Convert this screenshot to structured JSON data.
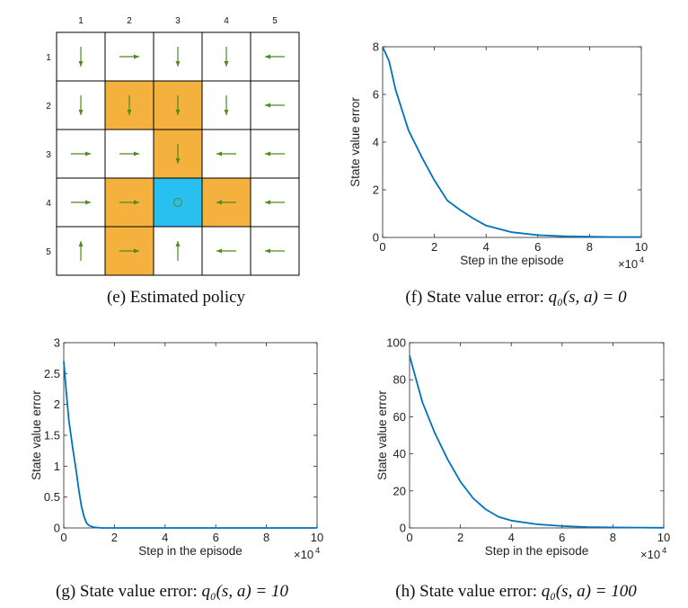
{
  "colors": {
    "line": "#0072BD",
    "forbidden": "#F5B13D",
    "target": "#29BFEF",
    "arrow": "#4E8A1E",
    "grid": "#000000"
  },
  "chart_data": [
    {
      "type": "table",
      "panel": "e",
      "caption": "(e) Estimated policy",
      "col_labels": [
        "1",
        "2",
        "3",
        "4",
        "5"
      ],
      "row_labels": [
        "1",
        "2",
        "3",
        "4",
        "5"
      ],
      "cell_types": [
        [
          "normal",
          "normal",
          "normal",
          "normal",
          "normal"
        ],
        [
          "normal",
          "forbidden",
          "forbidden",
          "normal",
          "normal"
        ],
        [
          "normal",
          "normal",
          "forbidden",
          "normal",
          "normal"
        ],
        [
          "normal",
          "forbidden",
          "target",
          "forbidden",
          "normal"
        ],
        [
          "normal",
          "forbidden",
          "normal",
          "normal",
          "normal"
        ]
      ],
      "policy": [
        [
          "down",
          "right",
          "down",
          "down",
          "left"
        ],
        [
          "down",
          "down",
          "down",
          "down",
          "left"
        ],
        [
          "right",
          "right",
          "down",
          "left",
          "left"
        ],
        [
          "right",
          "right",
          "stay",
          "left",
          "left"
        ],
        [
          "up",
          "right",
          "up",
          "left",
          "left"
        ]
      ]
    },
    {
      "type": "line",
      "panel": "f",
      "caption_text": "(f) State value error: ",
      "caption_math": "q₀(s, a) = 0",
      "xlabel": "Step in the episode",
      "ylabel": "State value error",
      "x_multiplier": "×10",
      "x_exponent": "4",
      "xlim": [
        0,
        10
      ],
      "ylim": [
        0,
        8
      ],
      "xticks": [
        0,
        2,
        4,
        6,
        8,
        10
      ],
      "yticks": [
        0,
        2,
        4,
        6,
        8
      ],
      "series": [
        {
          "x": [
            0,
            0.25,
            0.5,
            1.0,
            1.5,
            2.0,
            2.5,
            3.0,
            3.5,
            4.0,
            5.0,
            6.0,
            7.0,
            8.0,
            9.0,
            10.0
          ],
          "values": [
            8.0,
            7.4,
            6.2,
            4.5,
            3.4,
            2.4,
            1.55,
            1.15,
            0.8,
            0.5,
            0.22,
            0.1,
            0.05,
            0.03,
            0.02,
            0.02
          ]
        }
      ]
    },
    {
      "type": "line",
      "panel": "g",
      "caption_text": "(g) State value error: ",
      "caption_math": "q₀(s, a) = 10",
      "xlabel": "Step in the episode",
      "ylabel": "State value error",
      "x_multiplier": "×10",
      "x_exponent": "4",
      "xlim": [
        0,
        10
      ],
      "ylim": [
        0,
        3
      ],
      "xticks": [
        0,
        2,
        4,
        6,
        8,
        10
      ],
      "yticks": [
        0,
        0.5,
        1,
        1.5,
        2,
        2.5,
        3
      ],
      "series": [
        {
          "x": [
            0,
            0.1,
            0.2,
            0.35,
            0.5,
            0.6,
            0.7,
            0.8,
            0.9,
            1.0,
            1.2,
            1.5,
            2.0,
            4.0,
            6.0,
            8.0,
            10.0
          ],
          "values": [
            2.7,
            2.2,
            1.75,
            1.3,
            0.9,
            0.6,
            0.35,
            0.18,
            0.08,
            0.04,
            0.01,
            0.0,
            0.0,
            0.0,
            0.0,
            0.0,
            0.0
          ]
        }
      ]
    },
    {
      "type": "line",
      "panel": "h",
      "caption_text": "(h) State value error: ",
      "caption_math": "q₀(s, a) = 100",
      "xlabel": "Step in the episode",
      "ylabel": "State value error",
      "x_multiplier": "×10",
      "x_exponent": "4",
      "xlim": [
        0,
        10
      ],
      "ylim": [
        0,
        100
      ],
      "xticks": [
        0,
        2,
        4,
        6,
        8,
        10
      ],
      "yticks": [
        0,
        20,
        40,
        60,
        80,
        100
      ],
      "series": [
        {
          "x": [
            0,
            0.5,
            1.0,
            1.5,
            2.0,
            2.5,
            3.0,
            3.5,
            4.0,
            5.0,
            6.0,
            7.0,
            8.0,
            9.0,
            10.0
          ],
          "values": [
            93,
            68,
            51,
            37,
            25,
            16,
            10,
            6,
            4,
            2,
            1,
            0.5,
            0.3,
            0.2,
            0.1
          ]
        }
      ]
    }
  ]
}
